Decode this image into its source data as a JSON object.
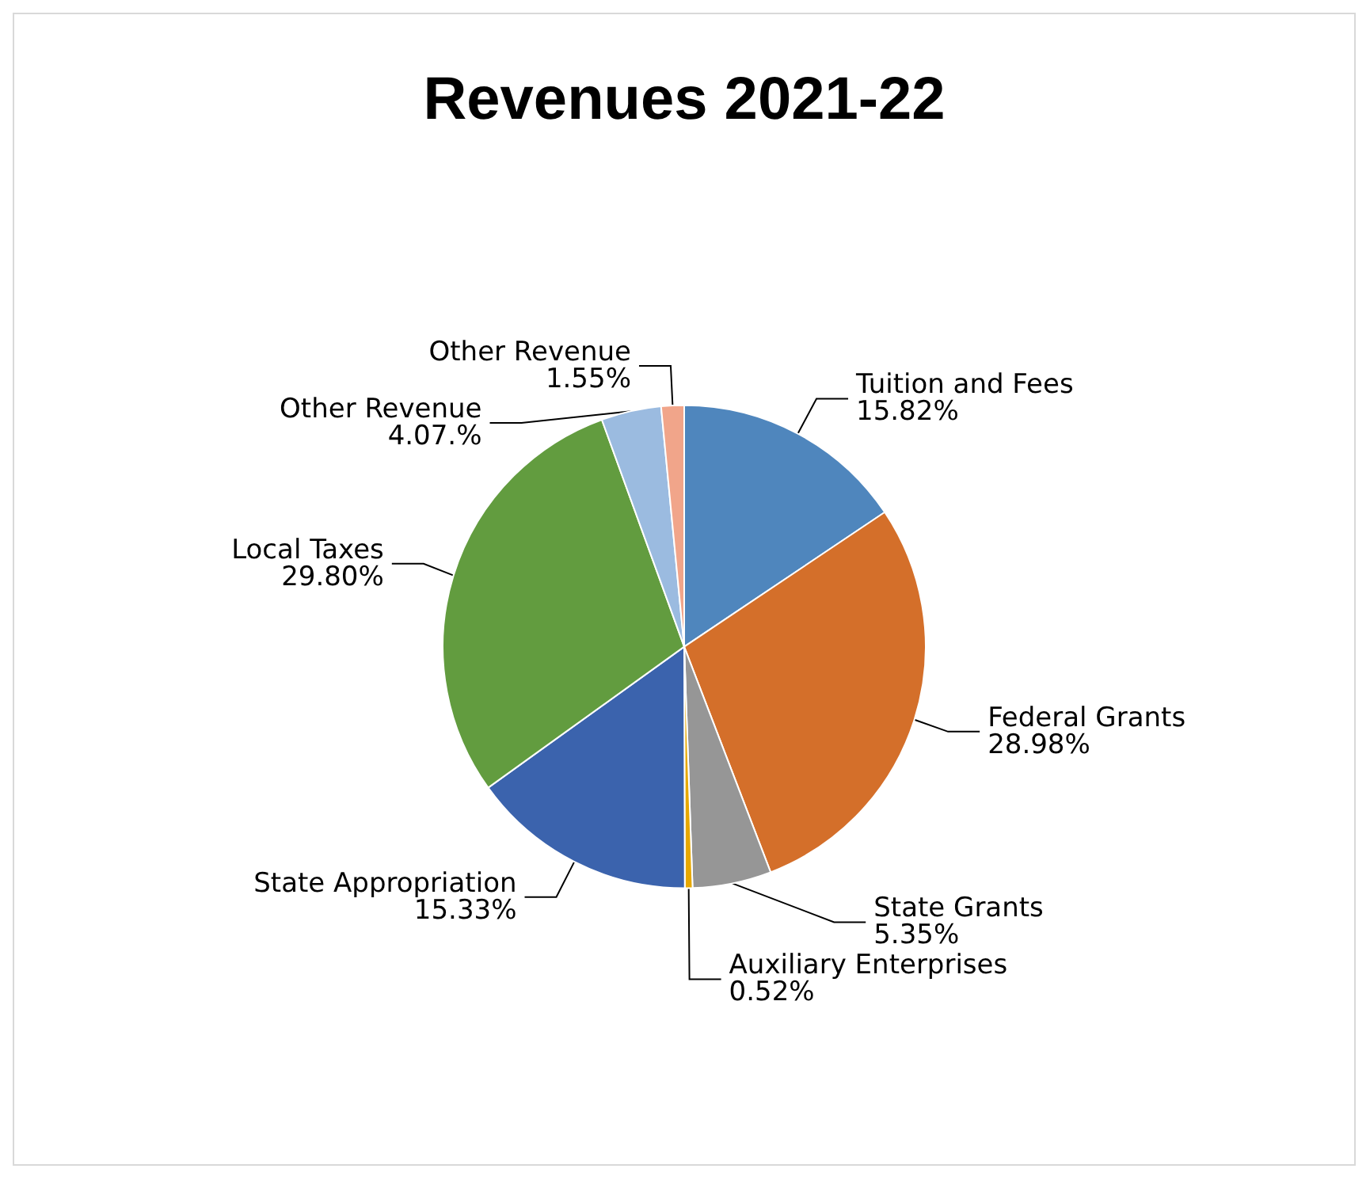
{
  "chart_data": {
    "type": "pie",
    "title": "Revenues 2021-22",
    "categories": [
      "Tuition and Fees",
      "Federal Grants",
      "State Grants",
      "Auxiliary Enterprises",
      "State Appropriation",
      "Local Taxes",
      "Other Revenue",
      "Other Revenue"
    ],
    "values": [
      15.82,
      28.98,
      5.35,
      0.52,
      15.33,
      29.8,
      4.07,
      1.55
    ],
    "value_labels": [
      "15.82%",
      "28.98%",
      "5.35%",
      "0.52%",
      "15.33%",
      "29.80%",
      "4.07.%",
      "1.55%"
    ],
    "colors": [
      "#4f86bd",
      "#d46f2a",
      "#969696",
      "#e7a800",
      "#3b63ad",
      "#629c3f",
      "#9bbbe0",
      "#f1a58a"
    ],
    "legend": false
  }
}
